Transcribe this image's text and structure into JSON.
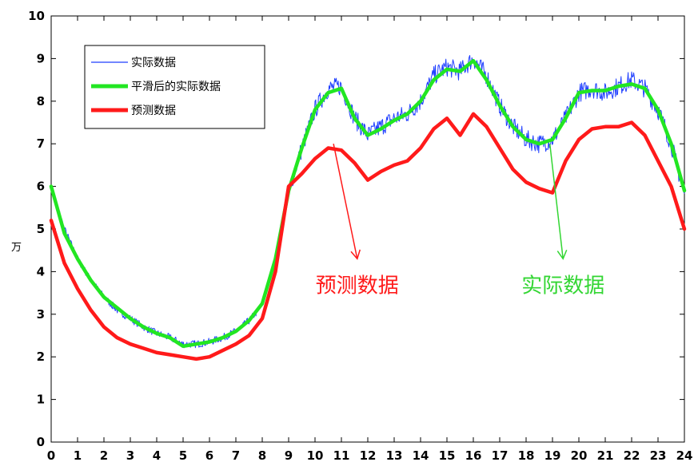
{
  "chart_data": {
    "type": "line",
    "title": "",
    "xlabel": "",
    "ylabel": "万",
    "xlim": [
      0,
      24
    ],
    "ylim": [
      0,
      10
    ],
    "xticks": [
      "0",
      "1",
      "2",
      "3",
      "4",
      "5",
      "6",
      "7",
      "8",
      "9",
      "10",
      "11",
      "12",
      "13",
      "14",
      "15",
      "16",
      "17",
      "18",
      "19",
      "20",
      "21",
      "22",
      "23",
      "24"
    ],
    "yticks": [
      "0",
      "1",
      "2",
      "3",
      "4",
      "5",
      "6",
      "7",
      "8",
      "9",
      "10"
    ],
    "grid": false,
    "legend_position": "top-left",
    "x": [
      0,
      0.5,
      1,
      1.5,
      2,
      2.5,
      3,
      3.5,
      4,
      4.5,
      5,
      5.5,
      6,
      6.5,
      7,
      7.5,
      8,
      8.5,
      9,
      9.5,
      10,
      10.5,
      11,
      11.5,
      12,
      12.5,
      13,
      13.5,
      14,
      14.5,
      15,
      15.5,
      16,
      16.5,
      17,
      17.5,
      18,
      18.5,
      19,
      19.5,
      20,
      20.5,
      21,
      21.5,
      22,
      22.5,
      23,
      23.5,
      24
    ],
    "series": [
      {
        "name": "实际数据",
        "color": "#1f3fff",
        "style": "thin-noisy",
        "values": [
          6.0,
          5.0,
          4.3,
          3.8,
          3.4,
          3.1,
          2.9,
          2.7,
          2.55,
          2.45,
          2.3,
          2.3,
          2.35,
          2.45,
          2.6,
          2.85,
          3.2,
          4.3,
          5.9,
          6.9,
          7.8,
          8.3,
          8.35,
          7.6,
          7.2,
          7.4,
          7.6,
          7.7,
          8.0,
          8.6,
          8.8,
          8.7,
          9.0,
          8.6,
          7.9,
          7.4,
          7.1,
          7.0,
          7.1,
          7.6,
          8.2,
          8.3,
          8.2,
          8.35,
          8.5,
          8.3,
          7.8,
          7.0,
          5.8
        ]
      },
      {
        "name": "平滑后的实际数据",
        "color": "#22e622",
        "style": "thick",
        "values": [
          6.0,
          4.9,
          4.3,
          3.8,
          3.4,
          3.15,
          2.9,
          2.7,
          2.55,
          2.45,
          2.25,
          2.3,
          2.35,
          2.45,
          2.6,
          2.85,
          3.25,
          4.3,
          5.9,
          6.9,
          7.8,
          8.2,
          8.3,
          7.6,
          7.2,
          7.35,
          7.55,
          7.7,
          8.0,
          8.5,
          8.75,
          8.7,
          8.95,
          8.5,
          7.9,
          7.4,
          7.1,
          7.0,
          7.1,
          7.6,
          8.2,
          8.25,
          8.25,
          8.35,
          8.4,
          8.3,
          7.8,
          7.0,
          5.9
        ]
      },
      {
        "name": "预测数据",
        "color": "#ff1a1a",
        "style": "thick",
        "values": [
          5.2,
          4.2,
          3.6,
          3.1,
          2.7,
          2.45,
          2.3,
          2.2,
          2.1,
          2.05,
          2.0,
          1.95,
          2.0,
          2.15,
          2.3,
          2.5,
          2.9,
          4.0,
          6.0,
          6.3,
          6.65,
          6.9,
          6.85,
          6.55,
          6.15,
          6.35,
          6.5,
          6.6,
          6.9,
          7.35,
          7.6,
          7.2,
          7.7,
          7.4,
          6.9,
          6.4,
          6.1,
          5.95,
          5.85,
          6.6,
          7.1,
          7.35,
          7.4,
          7.4,
          7.5,
          7.2,
          6.6,
          6.0,
          5.0
        ]
      }
    ],
    "annotations": [
      {
        "text": "预测数据",
        "color": "#ff1a1a",
        "arrow_from": [
          10.7,
          7.0
        ],
        "arrow_to": [
          11.6,
          4.3
        ]
      },
      {
        "text": "实际数据",
        "color": "#33d633",
        "arrow_from": [
          18.9,
          7.0
        ],
        "arrow_to": [
          19.4,
          4.3
        ]
      }
    ]
  }
}
